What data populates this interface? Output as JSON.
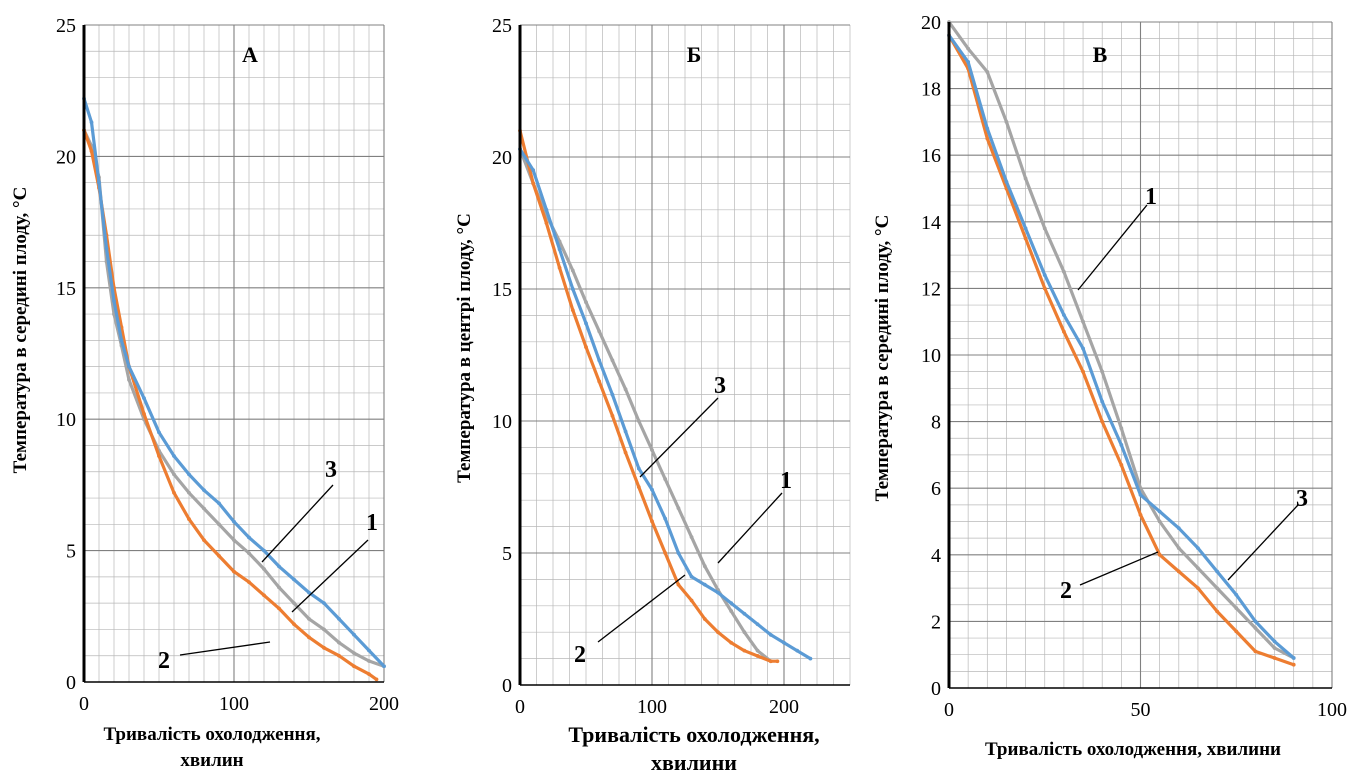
{
  "colors": {
    "series1": "#a5a5a5",
    "series2": "#ed7d31",
    "series3": "#5b9bd5",
    "grid_major": "#808080",
    "grid_minor": "#b8b8b8",
    "axis": "#000000"
  },
  "chart_data": [
    {
      "type": "line",
      "title": "А",
      "xlabel": "Тривалість охолодження,",
      "xlabel2": "хвилин",
      "ylabel": "Температура в середині плоду, °С",
      "xlim": [
        0,
        200
      ],
      "ylim": [
        0,
        25
      ],
      "xticks": [
        0,
        100,
        200
      ],
      "yticks": [
        0,
        5,
        10,
        15,
        20,
        25
      ],
      "xtick_labels": [
        "0",
        "100",
        "200"
      ],
      "ytick_labels": [
        "0",
        "5",
        "10",
        "15",
        "20",
        "25"
      ],
      "grid": true,
      "series": [
        {
          "label": "1",
          "x": [
            0,
            5,
            10,
            15,
            20,
            25,
            30,
            40,
            50,
            60,
            70,
            80,
            90,
            100,
            110,
            120,
            130,
            140,
            150,
            160,
            170,
            180,
            190,
            200
          ],
          "y": [
            21.0,
            20.4,
            19.2,
            16.0,
            14.0,
            12.8,
            11.5,
            10.0,
            8.8,
            7.9,
            7.2,
            6.6,
            6.0,
            5.4,
            4.9,
            4.3,
            3.6,
            3.0,
            2.4,
            2.0,
            1.5,
            1.1,
            0.8,
            0.6
          ]
        },
        {
          "label": "2",
          "x": [
            0,
            5,
            10,
            15,
            20,
            25,
            30,
            40,
            50,
            60,
            70,
            80,
            90,
            100,
            110,
            120,
            130,
            140,
            150,
            160,
            170,
            180,
            190,
            195
          ],
          "y": [
            21.0,
            20.2,
            18.8,
            17.0,
            15.0,
            13.5,
            12.0,
            10.2,
            8.6,
            7.2,
            6.2,
            5.4,
            4.8,
            4.2,
            3.8,
            3.3,
            2.8,
            2.2,
            1.7,
            1.3,
            1.0,
            0.6,
            0.3,
            0.1
          ]
        },
        {
          "label": "3",
          "x": [
            0,
            5,
            10,
            15,
            20,
            25,
            30,
            40,
            50,
            60,
            70,
            80,
            90,
            100,
            110,
            120,
            130,
            140,
            150,
            160,
            170,
            180,
            190,
            200
          ],
          "y": [
            22.2,
            21.3,
            19.0,
            16.5,
            14.5,
            13.0,
            12.0,
            10.8,
            9.5,
            8.6,
            7.9,
            7.3,
            6.8,
            6.1,
            5.5,
            5.0,
            4.4,
            3.9,
            3.4,
            3.0,
            2.4,
            1.8,
            1.2,
            0.6
          ]
        }
      ]
    },
    {
      "type": "line",
      "title": "Б",
      "xlabel": "Тривалість охолодження,",
      "xlabel2": "хвилини",
      "ylabel": "Температура в центрі плоду, °С",
      "xlim": [
        0,
        250
      ],
      "ylim": [
        0,
        25
      ],
      "xticks": [
        0,
        100,
        200
      ],
      "yticks": [
        0,
        5,
        10,
        15,
        20,
        25
      ],
      "xtick_labels": [
        "0",
        "100",
        "200"
      ],
      "ytick_labels": [
        "0",
        "5",
        "10",
        "15",
        "20",
        "25"
      ],
      "grid": true,
      "series": [
        {
          "label": "1",
          "x": [
            0,
            10,
            20,
            30,
            40,
            50,
            60,
            70,
            80,
            90,
            100,
            110,
            120,
            130,
            140,
            150,
            160,
            170,
            180,
            190
          ],
          "y": [
            20.3,
            19.0,
            17.8,
            16.8,
            15.7,
            14.5,
            13.4,
            12.3,
            11.2,
            10.0,
            8.9,
            7.8,
            6.7,
            5.6,
            4.5,
            3.6,
            2.8,
            2.0,
            1.3,
            0.9
          ]
        },
        {
          "label": "2",
          "x": [
            0,
            10,
            20,
            30,
            40,
            50,
            60,
            70,
            80,
            90,
            100,
            110,
            120,
            130,
            140,
            150,
            160,
            170,
            180,
            190,
            195
          ],
          "y": [
            21.0,
            19.0,
            17.5,
            15.8,
            14.2,
            12.8,
            11.5,
            10.2,
            8.8,
            7.5,
            6.2,
            5.0,
            3.8,
            3.2,
            2.5,
            2.0,
            1.6,
            1.3,
            1.1,
            0.9,
            0.9
          ]
        },
        {
          "label": "3",
          "x": [
            0,
            10,
            20,
            30,
            40,
            50,
            60,
            70,
            80,
            90,
            100,
            110,
            120,
            130,
            140,
            150,
            160,
            170,
            180,
            190,
            200,
            210,
            220
          ],
          "y": [
            20.3,
            19.5,
            18.0,
            16.5,
            15.0,
            13.7,
            12.3,
            11.0,
            9.6,
            8.2,
            7.4,
            6.3,
            5.0,
            4.1,
            3.8,
            3.5,
            3.1,
            2.7,
            2.3,
            1.9,
            1.6,
            1.3,
            1.0
          ]
        }
      ]
    },
    {
      "type": "line",
      "title": "В",
      "xlabel": "Тривалість охолодження, хвилини",
      "xlabel2": "",
      "ylabel": "Температура в середині плоду, °С",
      "xlim": [
        0,
        100
      ],
      "ylim": [
        0,
        20
      ],
      "xticks": [
        0,
        50,
        100
      ],
      "yticks": [
        0,
        2,
        4,
        6,
        8,
        10,
        12,
        14,
        16,
        18,
        20
      ],
      "xtick_labels": [
        "0",
        "50",
        "100"
      ],
      "ytick_labels": [
        "0",
        "2",
        "4",
        "6",
        "8",
        "10",
        "12",
        "14",
        "16",
        "18",
        "20"
      ],
      "grid": true,
      "series": [
        {
          "label": "1",
          "x": [
            0,
            5,
            10,
            15,
            20,
            25,
            30,
            35,
            40,
            45,
            50,
            55,
            60,
            65,
            70,
            75,
            80,
            85,
            90
          ],
          "y": [
            20.0,
            19.2,
            18.5,
            17.0,
            15.3,
            13.8,
            12.5,
            11.0,
            9.5,
            7.8,
            6.0,
            5.0,
            4.2,
            3.6,
            3.0,
            2.4,
            1.8,
            1.2,
            0.9
          ]
        },
        {
          "label": "2",
          "x": [
            0,
            5,
            10,
            15,
            20,
            25,
            30,
            35,
            40,
            45,
            50,
            55,
            60,
            65,
            70,
            75,
            80,
            85,
            90
          ],
          "y": [
            19.6,
            18.6,
            16.5,
            15.0,
            13.5,
            12.0,
            10.7,
            9.5,
            8.0,
            6.7,
            5.2,
            4.0,
            3.5,
            3.0,
            2.3,
            1.7,
            1.1,
            0.9,
            0.7
          ]
        },
        {
          "label": "3",
          "x": [
            0,
            5,
            10,
            15,
            20,
            25,
            30,
            35,
            40,
            45,
            50,
            55,
            60,
            65,
            70,
            75,
            80,
            85,
            90
          ],
          "y": [
            19.6,
            18.8,
            16.8,
            15.2,
            13.8,
            12.4,
            11.2,
            10.2,
            8.6,
            7.3,
            5.8,
            5.3,
            4.8,
            4.2,
            3.5,
            2.8,
            2.0,
            1.4,
            0.9
          ]
        }
      ]
    }
  ]
}
